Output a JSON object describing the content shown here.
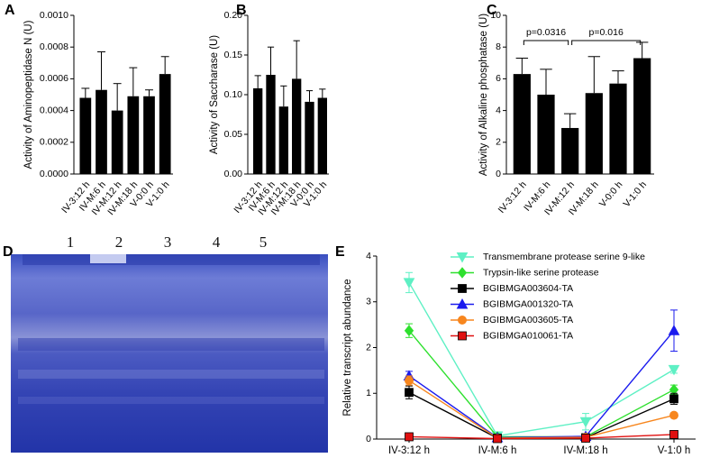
{
  "chart_data": [
    {
      "type": "bar",
      "panel": "A",
      "ylabel": "Activity of Aminopeptidase N (U)",
      "categories": [
        "IV-3:12 h",
        "IV-M:6 h",
        "IV-M:12 h",
        "IV-M:18 h",
        "V-0:0 h",
        "V-1:0 h"
      ],
      "values": [
        0.00048,
        0.00053,
        0.0004,
        0.00049,
        0.00049,
        0.00063
      ],
      "errors": [
        6e-05,
        0.00024,
        0.00017,
        0.00018,
        4e-05,
        0.00011
      ],
      "color": "#000000",
      "ylim": [
        0,
        0.001
      ],
      "yticks": [
        {
          "value": 0,
          "label": "0.0000"
        },
        {
          "value": 0.0002,
          "label": "0.0002"
        },
        {
          "value": 0.0004,
          "label": "0.0004"
        },
        {
          "value": 0.0006,
          "label": "0.0006"
        },
        {
          "value": 0.0008,
          "label": "0.0008"
        },
        {
          "value": 0.001,
          "label": "0.0010"
        }
      ]
    },
    {
      "type": "bar",
      "panel": "B",
      "ylabel": "Activity of Saccharase (U)",
      "categories": [
        "IV-3:12 h",
        "IV-M:6 h",
        "IV-M:12 h",
        "IV-M:18 h",
        "V-0:0 h",
        "V-1:0 h"
      ],
      "values": [
        0.108,
        0.125,
        0.085,
        0.12,
        0.091,
        0.096
      ],
      "errors": [
        0.016,
        0.035,
        0.026,
        0.048,
        0.014,
        0.011
      ],
      "color": "#000000",
      "ylim": [
        0,
        0.2
      ],
      "yticks": [
        {
          "value": 0,
          "label": "0.00"
        },
        {
          "value": 0.05,
          "label": "0.05"
        },
        {
          "value": 0.1,
          "label": "0.10"
        },
        {
          "value": 0.15,
          "label": "0.15"
        },
        {
          "value": 0.2,
          "label": "0.20"
        }
      ]
    },
    {
      "type": "bar",
      "panel": "C",
      "ylabel": "Activity of Alkaline phosphatase (U)",
      "categories": [
        "IV-3:12 h",
        "IV-M:6 h",
        "IV-M:12 h",
        "IV-M:18 h",
        "V-0:0 h",
        "V-1:0 h"
      ],
      "values": [
        6.3,
        5.0,
        2.9,
        5.1,
        5.7,
        7.3
      ],
      "errors": [
        1.0,
        1.6,
        0.9,
        2.3,
        0.8,
        1.0
      ],
      "color": "#000000",
      "ylim": [
        0,
        10
      ],
      "yticks": [
        0,
        2,
        4,
        6,
        8,
        10
      ],
      "annotations": [
        "p=0.0316",
        "p=0.016"
      ]
    },
    {
      "type": "gel",
      "panel": "D",
      "lanes": [
        "1",
        "2",
        "3",
        "4",
        "5"
      ]
    },
    {
      "type": "line",
      "panel": "E",
      "ylabel": "Relative transcript abundance",
      "categories": [
        "IV-3:12 h",
        "IV-M:6 h",
        "IV-M:18 h",
        "V-1:0 h"
      ],
      "ylim": [
        0,
        4
      ],
      "yticks": [
        0,
        1,
        2,
        3,
        4
      ],
      "series": [
        {
          "name": "Transmembrane protease serine 9-like",
          "color": "#5ef0c4",
          "marker": "triangle-down",
          "values": [
            3.42,
            0.07,
            0.38,
            1.52
          ],
          "errors": [
            0.22,
            0.03,
            0.18,
            0.08
          ]
        },
        {
          "name": "Trypsin-like serine protease",
          "color": "#2ee02e",
          "marker": "diamond",
          "values": [
            2.37,
            0.05,
            0.05,
            1.08
          ],
          "errors": [
            0.15,
            0.02,
            0.02,
            0.1
          ]
        },
        {
          "name": "BGIBMGA003604-TA",
          "color": "#000000",
          "marker": "square",
          "values": [
            1.02,
            0.02,
            0.03,
            0.88
          ],
          "errors": [
            0.14,
            0.01,
            0.01,
            0.12
          ]
        },
        {
          "name": "BGIBMGA001320-TA",
          "color": "#1a1aee",
          "marker": "triangle-up",
          "values": [
            1.38,
            0.03,
            0.06,
            2.37
          ],
          "errors": [
            0.1,
            0.01,
            0.02,
            0.45
          ]
        },
        {
          "name": "BGIBMGA003605-TA",
          "color": "#f7861e",
          "marker": "circle",
          "values": [
            1.28,
            0.02,
            0.04,
            0.52
          ],
          "errors": [
            0.1,
            0.01,
            0.01,
            0.05
          ]
        },
        {
          "name": "BGIBMGA010061-TA",
          "color": "#e01010",
          "marker": "square",
          "values": [
            0.05,
            0.01,
            0.02,
            0.1
          ],
          "errors": [
            0.02,
            0.005,
            0.005,
            0.03
          ]
        }
      ]
    }
  ]
}
